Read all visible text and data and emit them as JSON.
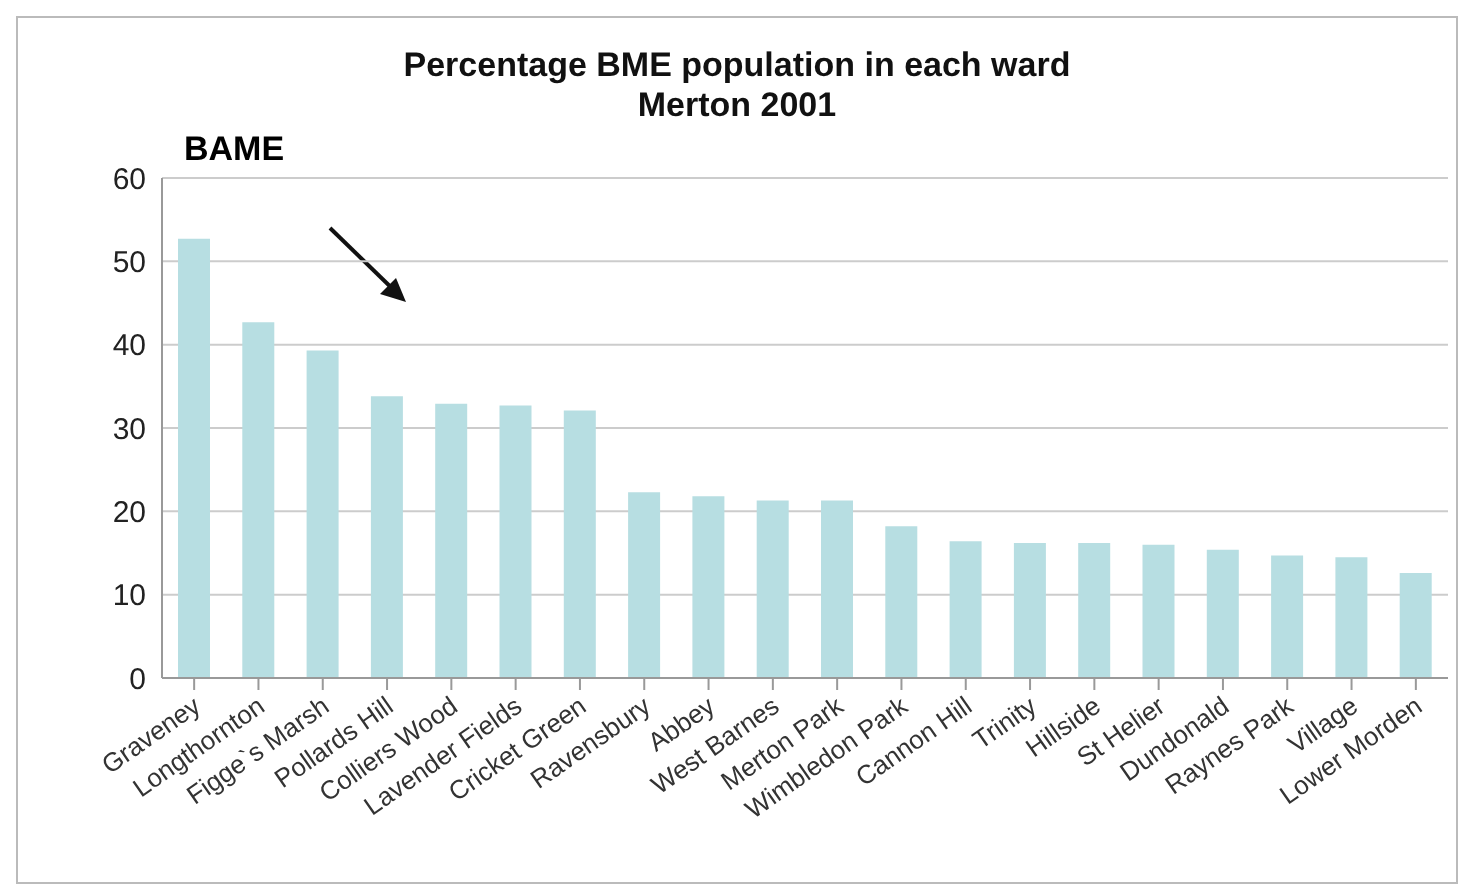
{
  "chart_data": {
    "type": "bar",
    "title": "Percentage BME population in each ward\nMerton 2001",
    "annotations": [
      "BAME"
    ],
    "categories": [
      "Graveney",
      "Longthornton",
      "Figge`s Marsh",
      "Pollards Hill",
      "Colliers Wood",
      "Lavender Fields",
      "Cricket Green",
      "Ravensbury",
      "Abbey",
      "West Barnes",
      "Merton Park",
      "Wimbledon Park",
      "Cannon Hill",
      "Trinity",
      "Hillside",
      "St Helier",
      "Dundonald",
      "Raynes Park",
      "Village",
      "Lower Morden"
    ],
    "values": [
      52.7,
      42.7,
      39.3,
      33.8,
      32.9,
      32.7,
      32.1,
      22.3,
      21.8,
      21.3,
      21.3,
      18.2,
      16.4,
      16.2,
      16.2,
      16.0,
      15.4,
      14.7,
      14.5,
      12.6
    ],
    "color": "#b7dee2",
    "ylim": [
      0,
      60
    ],
    "yticks": [
      0,
      10,
      20,
      30,
      40,
      50,
      60
    ],
    "grid": "y",
    "legend": false
  }
}
